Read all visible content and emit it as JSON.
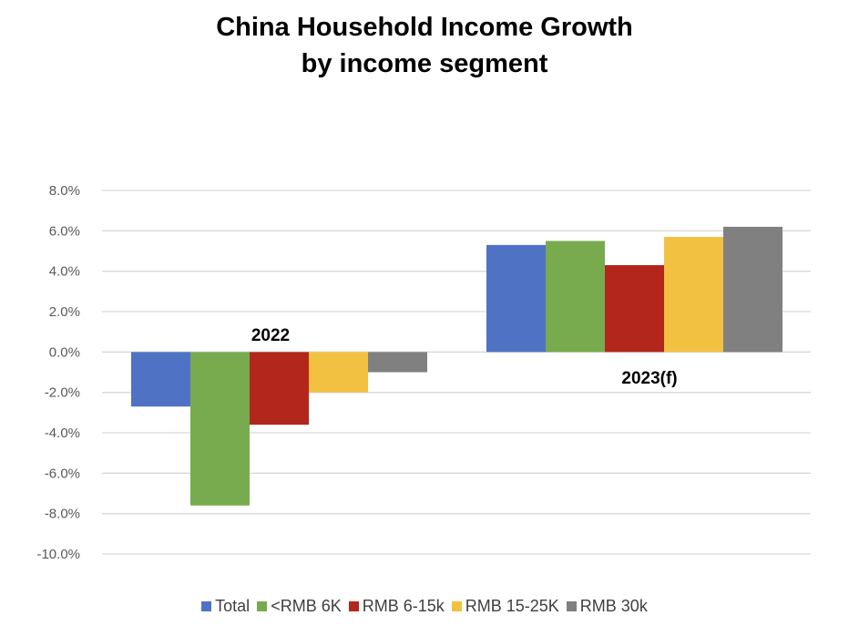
{
  "chart_data": {
    "type": "bar",
    "title": "China Household Income Growth",
    "subtitle": "by income segment",
    "categories": [
      "2022",
      "2023(f)"
    ],
    "series": [
      {
        "name": "Total",
        "color": "#4f72c4",
        "values": [
          -2.7,
          5.3
        ]
      },
      {
        "name": "<RMB 6K",
        "color": "#78ab4e",
        "values": [
          -7.6,
          5.5
        ]
      },
      {
        "name": "RMB 6-15k",
        "color": "#b3261b",
        "values": [
          -3.6,
          4.3
        ]
      },
      {
        "name": "RMB 15-25K",
        "color": "#f3c142",
        "values": [
          -2.0,
          5.7
        ]
      },
      {
        "name": "RMB 30k",
        "color": "#808080",
        "values": [
          -1.0,
          6.2
        ]
      }
    ],
    "ylim": [
      -10.0,
      8.0
    ],
    "yticks": [
      "8.0%",
      "6.0%",
      "4.0%",
      "2.0%",
      "0.0%",
      "-2.0%",
      "-4.0%",
      "-6.0%",
      "-8.0%",
      "-10.0%"
    ],
    "xlabel": "",
    "ylabel": "",
    "grid": true,
    "legend_position": "bottom"
  }
}
